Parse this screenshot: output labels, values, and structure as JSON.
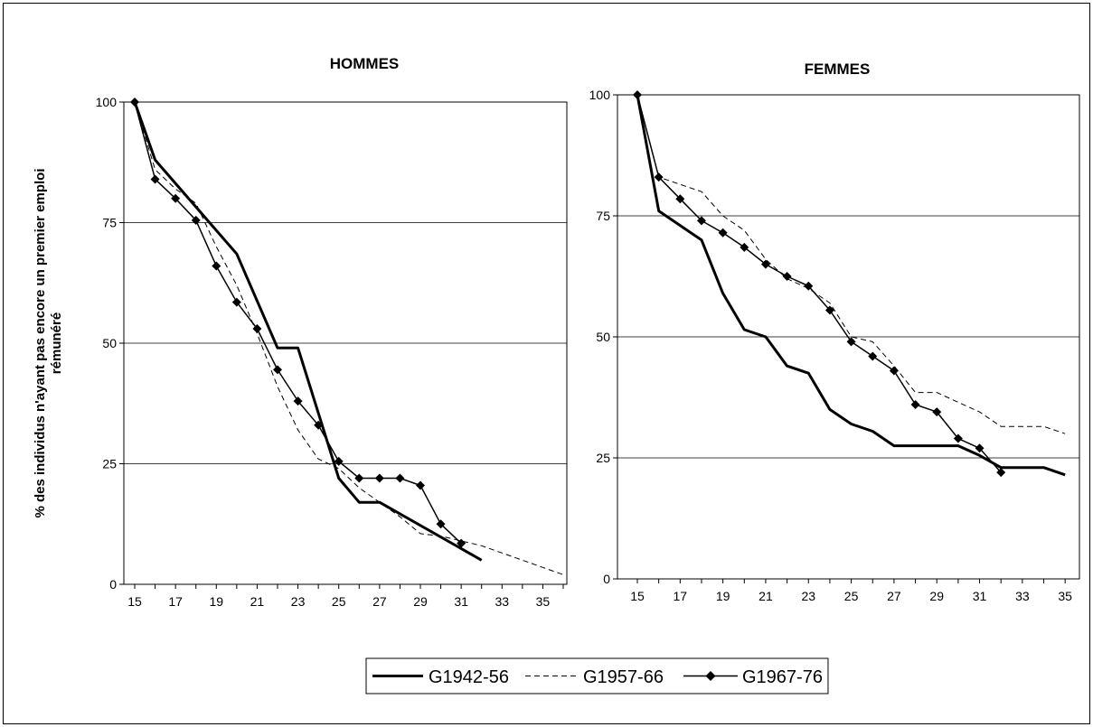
{
  "y_axis_label_line1": "% des individus n'ayant pas encore un premier emploi",
  "y_axis_label_line2": "rémunéré",
  "legend": [
    {
      "name": "G1942-56",
      "style": "solid-thick"
    },
    {
      "name": "G1957-66",
      "style": "dashed-thin"
    },
    {
      "name": "G1967-76",
      "style": "solid-diamond"
    }
  ],
  "chart_data": [
    {
      "type": "line",
      "title": "HOMMES",
      "xlim": [
        15,
        36
      ],
      "ylim": [
        0,
        100
      ],
      "xticks": [
        15,
        17,
        19,
        21,
        23,
        25,
        27,
        29,
        31,
        33,
        35
      ],
      "yticks": [
        0,
        25,
        50,
        75,
        100
      ],
      "grid": "horizontal",
      "series": [
        {
          "name": "G1942-56",
          "x": [
            15,
            16,
            20,
            22,
            23,
            25,
            26,
            27,
            32
          ],
          "y": [
            100,
            88,
            68.5,
            49,
            49,
            22,
            17,
            17,
            5
          ]
        },
        {
          "name": "G1957-66",
          "x": [
            15,
            16,
            17,
            18,
            19,
            20,
            21,
            22,
            23,
            24,
            25,
            26,
            27,
            28,
            29,
            30,
            31,
            32,
            33,
            34,
            35,
            36
          ],
          "y": [
            100,
            86,
            82,
            79,
            70,
            62,
            52,
            41,
            32,
            26,
            24,
            20,
            17,
            14,
            10.5,
            10,
            9,
            8,
            6.5,
            5,
            3.5,
            2
          ]
        },
        {
          "name": "G1967-76",
          "x": [
            15,
            16,
            17,
            18,
            19,
            20,
            21,
            22,
            23,
            24,
            25,
            26,
            27,
            28,
            29,
            30,
            31
          ],
          "y": [
            100,
            84,
            80,
            75.5,
            66,
            58.5,
            53,
            44.5,
            38,
            33,
            25.5,
            22,
            22,
            22,
            20.5,
            12.5,
            8.5
          ]
        }
      ]
    },
    {
      "type": "line",
      "title": "FEMMES",
      "xlim": [
        15,
        35.5
      ],
      "ylim": [
        0,
        100
      ],
      "xticks": [
        15,
        17,
        19,
        21,
        23,
        25,
        27,
        29,
        31,
        33,
        35
      ],
      "yticks": [
        0,
        25,
        50,
        75,
        100
      ],
      "grid": "horizontal",
      "series": [
        {
          "name": "G1942-56",
          "x": [
            15,
            16,
            18,
            19,
            20,
            21,
            22,
            23,
            24,
            25,
            26,
            27,
            28,
            29,
            30,
            31,
            32,
            34,
            35
          ],
          "y": [
            100,
            76,
            70,
            59,
            51.5,
            50,
            44,
            42.5,
            35,
            32,
            30.5,
            27.5,
            27.5,
            27.5,
            27.5,
            25.5,
            23,
            23,
            21.5
          ]
        },
        {
          "name": "G1957-66",
          "x": [
            15,
            16,
            17,
            18,
            19,
            20,
            21,
            22,
            23,
            24,
            25,
            26,
            27,
            28,
            29,
            30,
            31,
            32,
            33,
            34,
            35
          ],
          "y": [
            100,
            83,
            81.5,
            80,
            75,
            72,
            66,
            62,
            60,
            57,
            50,
            49,
            44,
            38.5,
            38.5,
            36.5,
            34.5,
            31.5,
            31.5,
            31.5,
            30
          ]
        },
        {
          "name": "G1967-76",
          "x": [
            15,
            16,
            17,
            18,
            19,
            20,
            21,
            22,
            23,
            24,
            25,
            26,
            27,
            28,
            29,
            30,
            31,
            32
          ],
          "y": [
            100,
            83,
            78.5,
            74,
            71.5,
            68.5,
            65,
            62.5,
            60.5,
            55.5,
            49,
            46,
            43,
            36,
            34.5,
            29,
            27,
            22
          ]
        }
      ]
    }
  ]
}
